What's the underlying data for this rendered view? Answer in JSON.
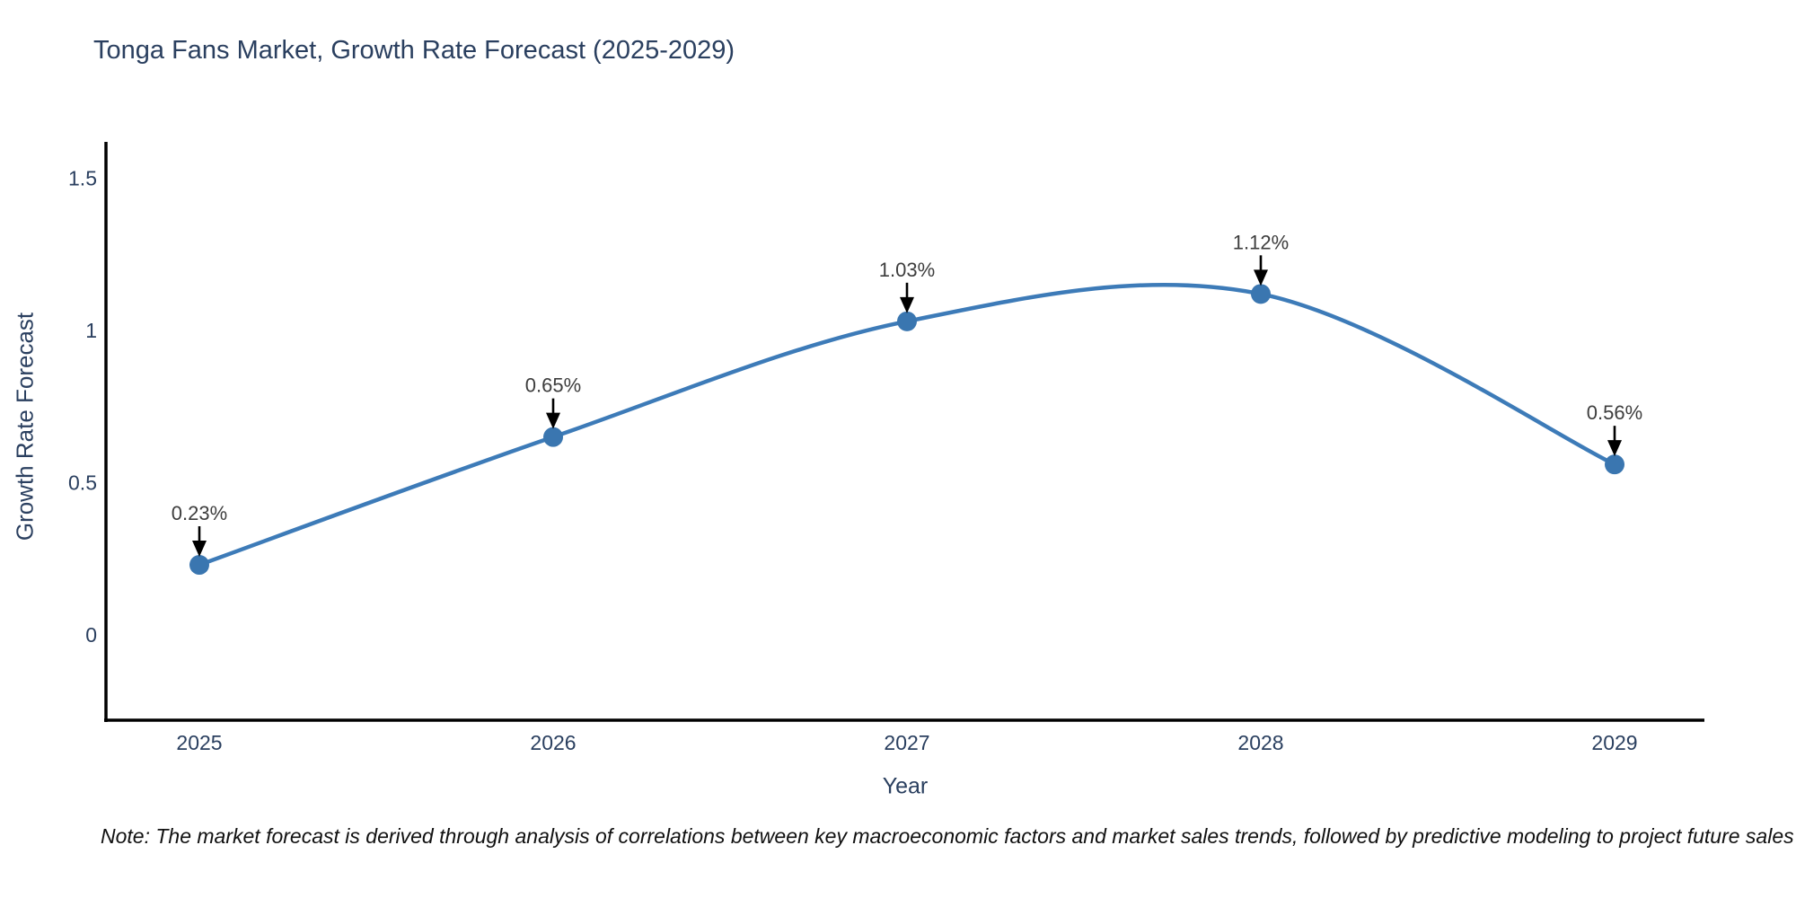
{
  "chart_data": {
    "type": "line",
    "title": "Tonga Fans Market, Growth Rate Forecast (2025-2029)",
    "xlabel": "Year",
    "ylabel": "Growth Rate Forecast",
    "x": [
      2025,
      2026,
      2027,
      2028,
      2029
    ],
    "series": [
      {
        "name": "Growth Rate Forecast",
        "values": [
          0.23,
          0.65,
          1.03,
          1.12,
          0.56
        ]
      }
    ],
    "point_labels": [
      "0.23%",
      "0.65%",
      "1.03%",
      "1.12%",
      "0.56%"
    ],
    "xtick_labels": [
      "2025",
      "2026",
      "2027",
      "2028",
      "2029"
    ],
    "ytick_values": [
      0,
      0.5,
      1,
      1.5
    ],
    "ytick_labels": [
      "0",
      "0.5",
      "1",
      "1.5"
    ],
    "ylim": [
      -0.28,
      1.9
    ],
    "grid": false,
    "legend_position": "none",
    "curve_style": "smooth-spline",
    "line_color": "#3d7bb8",
    "marker_color": "#3a76b0",
    "axis_color": "#000000",
    "tick_color": "#2a3f5f",
    "annotation_color": "#3d3d3d",
    "arrow_color": "#000000",
    "note": "Note: The market forecast is derived through analysis of correlations between key macroeconomic factors and market sales trends, followed by predictive modeling to project future sales"
  }
}
